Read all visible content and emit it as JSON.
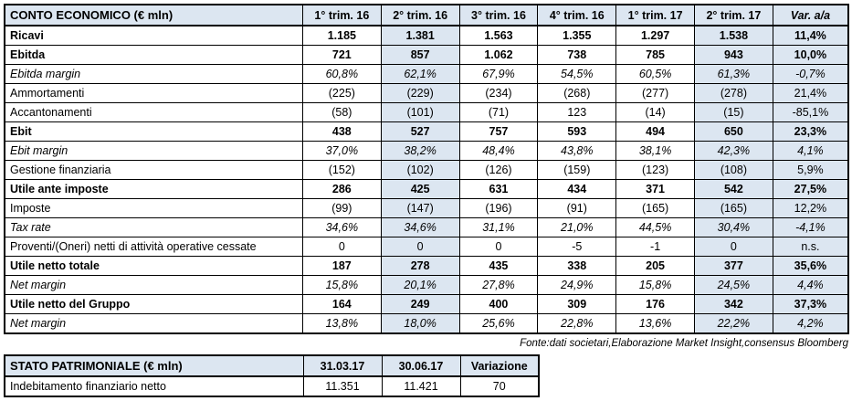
{
  "colors": {
    "accent": "#DCE6F1",
    "border": "#000000",
    "text": "#000000",
    "background": "#FFFFFF"
  },
  "income_table": {
    "title": "CONTO ECONOMICO (€ mln)",
    "columns": [
      "1° trim. 16",
      "2° trim. 16",
      "3° trim. 16",
      "4° trim. 16",
      "1° trim. 17",
      "2° trim. 17",
      "Var. a/a"
    ],
    "shaded_columns": [
      1,
      5,
      6
    ],
    "rows": [
      {
        "label": "Ricavi",
        "style": "bold",
        "values": [
          "1.185",
          "1.381",
          "1.563",
          "1.355",
          "1.297",
          "1.538",
          "11,4%"
        ]
      },
      {
        "label": "Ebitda",
        "style": "bold",
        "values": [
          "721",
          "857",
          "1.062",
          "738",
          "785",
          "943",
          "10,0%"
        ]
      },
      {
        "label": "Ebitda margin",
        "style": "italic",
        "values": [
          "60,8%",
          "62,1%",
          "67,9%",
          "54,5%",
          "60,5%",
          "61,3%",
          "-0,7%"
        ]
      },
      {
        "label": "Ammortamenti",
        "style": "normal",
        "values": [
          "(225)",
          "(229)",
          "(234)",
          "(268)",
          "(277)",
          "(278)",
          "21,4%"
        ]
      },
      {
        "label": "Accantonamenti",
        "style": "normal",
        "values": [
          "(58)",
          "(101)",
          "(71)",
          "123",
          "(14)",
          "(15)",
          "-85,1%"
        ]
      },
      {
        "label": "Ebit",
        "style": "bold",
        "values": [
          "438",
          "527",
          "757",
          "593",
          "494",
          "650",
          "23,3%"
        ]
      },
      {
        "label": "Ebit margin",
        "style": "italic",
        "values": [
          "37,0%",
          "38,2%",
          "48,4%",
          "43,8%",
          "38,1%",
          "42,3%",
          "4,1%"
        ]
      },
      {
        "label": "Gestione finanziaria",
        "style": "normal",
        "values": [
          "(152)",
          "(102)",
          "(126)",
          "(159)",
          "(123)",
          "(108)",
          "5,9%"
        ]
      },
      {
        "label": "Utile ante imposte",
        "style": "bold",
        "values": [
          "286",
          "425",
          "631",
          "434",
          "371",
          "542",
          "27,5%"
        ]
      },
      {
        "label": "Imposte",
        "style": "normal",
        "values": [
          "(99)",
          "(147)",
          "(196)",
          "(91)",
          "(165)",
          "(165)",
          "12,2%"
        ]
      },
      {
        "label": "Tax rate",
        "style": "italic",
        "values": [
          "34,6%",
          "34,6%",
          "31,1%",
          "21,0%",
          "44,5%",
          "30,4%",
          "-4,1%"
        ]
      },
      {
        "label": "Proventi/(Oneri) netti di attività operative cessate",
        "style": "normal",
        "values": [
          "0",
          "0",
          "0",
          "-5",
          "-1",
          "0",
          "n.s."
        ]
      },
      {
        "label": "Utile netto totale",
        "style": "bold",
        "values": [
          "187",
          "278",
          "435",
          "338",
          "205",
          "377",
          "35,6%"
        ]
      },
      {
        "label": "Net margin",
        "style": "italic",
        "values": [
          "15,8%",
          "20,1%",
          "27,8%",
          "24,9%",
          "15,8%",
          "24,5%",
          "4,4%"
        ]
      },
      {
        "label": "Utile netto del Gruppo",
        "style": "bold",
        "values": [
          "164",
          "249",
          "400",
          "309",
          "176",
          "342",
          "37,3%"
        ]
      },
      {
        "label": "Net margin",
        "style": "italic",
        "values": [
          "13,8%",
          "18,0%",
          "25,6%",
          "22,8%",
          "13,6%",
          "22,2%",
          "4,2%"
        ]
      }
    ]
  },
  "source_note": "Fonte:dati societari,Elaborazione Market Insight,consensus Bloomberg",
  "balance_table": {
    "title": "STATO PATRIMONIALE (€ mln)",
    "columns": [
      "31.03.17",
      "30.06.17",
      "Variazione"
    ],
    "shaded_columns": [],
    "rows": [
      {
        "label": "Indebitamento finanziario netto",
        "style": "normal",
        "values": [
          "11.351",
          "11.421",
          "70"
        ]
      }
    ]
  }
}
